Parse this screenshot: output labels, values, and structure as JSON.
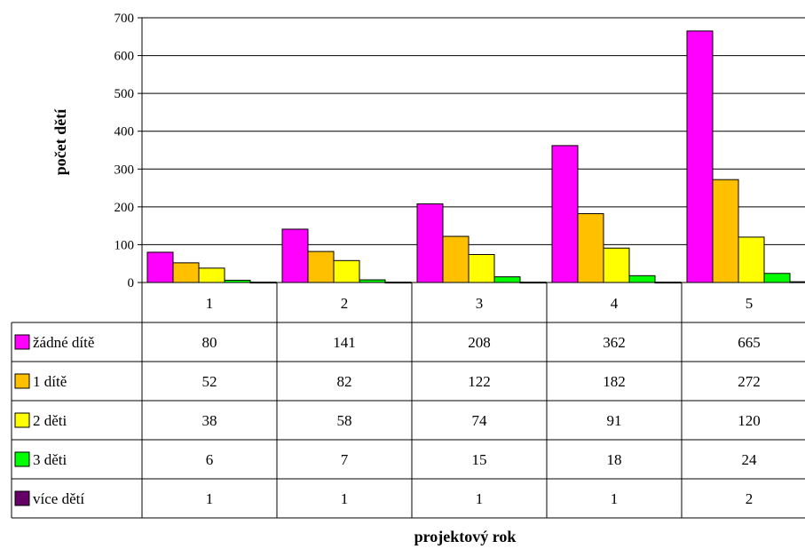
{
  "chart_data": {
    "type": "bar",
    "categories": [
      "1",
      "2",
      "3",
      "4",
      "5"
    ],
    "series": [
      {
        "name": "žádné dítě",
        "color": "#FF00FF",
        "values": [
          80,
          141,
          208,
          362,
          665
        ]
      },
      {
        "name": "1 dítě",
        "color": "#FFC000",
        "values": [
          52,
          82,
          122,
          182,
          272
        ]
      },
      {
        "name": "2 děti",
        "color": "#FFFF00",
        "values": [
          38,
          58,
          74,
          91,
          120
        ]
      },
      {
        "name": "3 děti",
        "color": "#00FF00",
        "values": [
          6,
          7,
          15,
          18,
          24
        ]
      },
      {
        "name": "více dětí",
        "color": "#660066",
        "values": [
          1,
          1,
          1,
          1,
          2
        ]
      }
    ],
    "xlabel": "projektový rok",
    "ylabel": "počet dětí",
    "ylim": [
      0,
      700
    ],
    "yticks": [
      0,
      100,
      200,
      300,
      400,
      500,
      600,
      700
    ],
    "grid": true,
    "legend": "data-table"
  }
}
